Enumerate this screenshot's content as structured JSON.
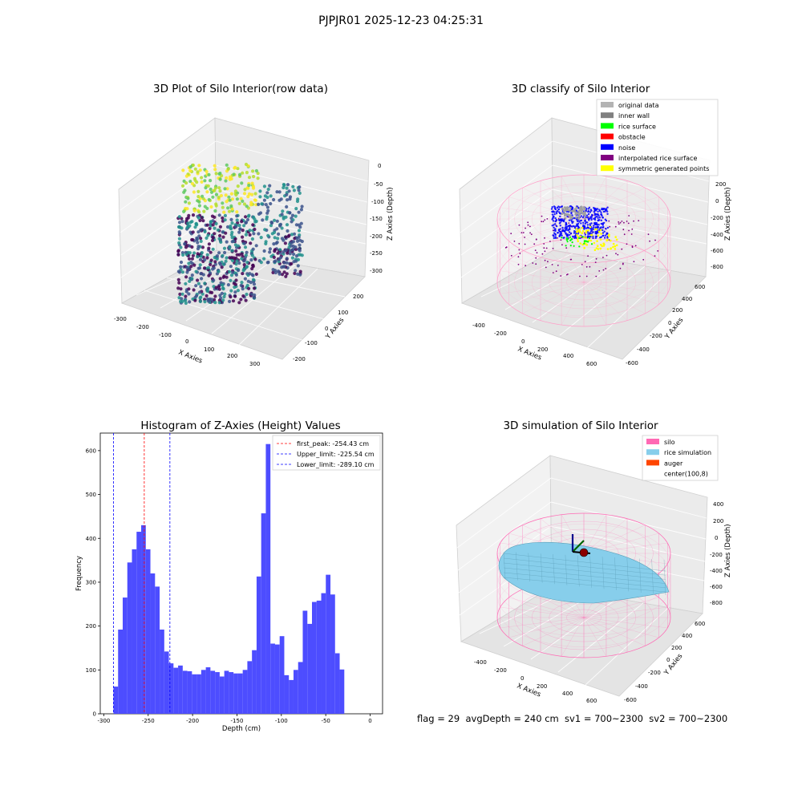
{
  "figure": {
    "suptitle": "PJPJR01 2025-12-23 04:25:31",
    "footer": "flag = 29  avgDepth = 240 cm  sv1 = 700~2300  sv2 = 700~2300"
  },
  "chart_data": [
    {
      "type": "scatter",
      "projection": "3d",
      "title": "3D Plot of Silo Interior(row data)",
      "xlabel": "X Axies",
      "ylabel": "Y Axies",
      "zlabel": "Z Axies (Depth)",
      "xticks": [
        -300,
        -200,
        -100,
        0,
        100,
        200,
        300
      ],
      "yticks": [
        -200,
        -100,
        0,
        100,
        200
      ],
      "zticks": [
        0,
        -50,
        -100,
        -150,
        -200,
        -250,
        -300
      ],
      "colormap": "viridis",
      "legend": null
    },
    {
      "type": "scatter",
      "projection": "3d",
      "title": "3D classify of Silo Interior",
      "xlabel": "X Axies",
      "ylabel": "Y Axies",
      "zlabel": "Z Axies (Depth)",
      "xticks": [
        -400,
        -200,
        0,
        200,
        400,
        600
      ],
      "yticks": [
        -600,
        -400,
        -200,
        0,
        200,
        400,
        600
      ],
      "zticks": [
        200,
        0,
        -200,
        -400,
        -600,
        -800
      ],
      "legend": {
        "placement": "top-right",
        "entries": [
          {
            "label": "original data",
            "color": "#b3b3b3"
          },
          {
            "label": "inner wall",
            "color": "#808080"
          },
          {
            "label": "rice surface",
            "color": "#00ff00"
          },
          {
            "label": "obstacle",
            "color": "#ff0000"
          },
          {
            "label": "noise",
            "color": "#0000ff"
          },
          {
            "label": "interpolated rice surface",
            "color": "#800080"
          },
          {
            "label": "symmetric generated points",
            "color": "#ffff00"
          }
        ]
      }
    },
    {
      "type": "bar",
      "title": "Histogram of Z-Axies (Height) Values",
      "xlabel": "Depth (cm)",
      "ylabel": "Frequency",
      "xlim": [
        -304,
        14
      ],
      "ylim": [
        0,
        640
      ],
      "xticks": [
        -300,
        -250,
        -200,
        -150,
        -100,
        -50,
        0
      ],
      "yticks": [
        0,
        100,
        200,
        300,
        400,
        500,
        600
      ],
      "bar_color": "#4d4dff",
      "bin_start": -289.1,
      "bin_width": 5.2,
      "values": [
        62,
        192,
        265,
        345,
        375,
        415,
        430,
        375,
        320,
        290,
        192,
        142,
        115,
        105,
        110,
        98,
        97,
        90,
        90,
        100,
        106,
        98,
        95,
        85,
        98,
        95,
        92,
        92,
        100,
        120,
        145,
        313,
        457,
        615,
        160,
        158,
        177,
        88,
        77,
        100,
        118,
        235,
        205,
        255,
        258,
        275,
        317,
        272,
        138,
        101
      ],
      "vlines": [
        {
          "label": "first_peak: -254.43 cm",
          "x": -254.43,
          "color": "#ff0000"
        },
        {
          "label": "Upper_limit: -225.54 cm",
          "x": -225.54,
          "color": "#0000ff"
        },
        {
          "label": "Lower_limit: -289.10 cm",
          "x": -289.1,
          "color": "#0000ff"
        }
      ],
      "legend": "top-right"
    },
    {
      "type": "surface",
      "projection": "3d",
      "title": "3D simulation of Silo Interior",
      "xlabel": "X Axies",
      "ylabel": "Y Axies",
      "zlabel": "Z Axies (Depth)",
      "xticks": [
        -400,
        -200,
        0,
        200,
        400,
        600
      ],
      "yticks": [
        -600,
        -400,
        -200,
        0,
        200,
        400,
        600
      ],
      "zticks": [
        400,
        200,
        0,
        -200,
        -400,
        -600,
        -800
      ],
      "legend": {
        "placement": "top-right",
        "entries": [
          {
            "label": "silo",
            "color": "#ff69b4"
          },
          {
            "label": "rice simulation",
            "color": "#87ceeb"
          },
          {
            "label": "auger",
            "color": "#ff4500"
          },
          {
            "label": "center(100,8)",
            "color": "#ffffff"
          }
        ]
      }
    }
  ]
}
